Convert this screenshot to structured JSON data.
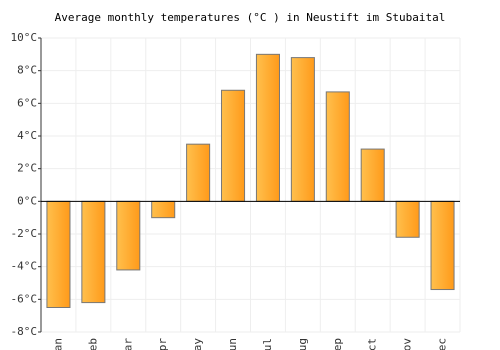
{
  "chart_data": {
    "type": "bar",
    "title": "Average monthly temperatures (°C ) in Neustift im Stubaital",
    "categories": [
      "an",
      "eb",
      "ar",
      "pr",
      "ay",
      "un",
      "ul",
      "ug",
      "ep",
      "ct",
      "ov",
      "ec"
    ],
    "values": [
      -6.5,
      -6.2,
      -4.2,
      -1.0,
      3.5,
      6.8,
      9.0,
      8.8,
      6.7,
      3.2,
      -2.2,
      -5.4
    ],
    "color": "#ffa930",
    "ylim": [
      -8,
      10
    ],
    "yticks": [
      {
        "value": -8,
        "label": "-8°C"
      },
      {
        "value": -6,
        "label": "-6°C"
      },
      {
        "value": -4,
        "label": "-4°C"
      },
      {
        "value": -2,
        "label": "-2°C"
      },
      {
        "value": 0,
        "label": "0°C"
      },
      {
        "value": 2,
        "label": "2°C"
      },
      {
        "value": 4,
        "label": "4°C"
      },
      {
        "value": 6,
        "label": "6°C"
      },
      {
        "value": 8,
        "label": "8°C"
      },
      {
        "value": 10,
        "label": "10°C"
      }
    ],
    "grid": true
  }
}
